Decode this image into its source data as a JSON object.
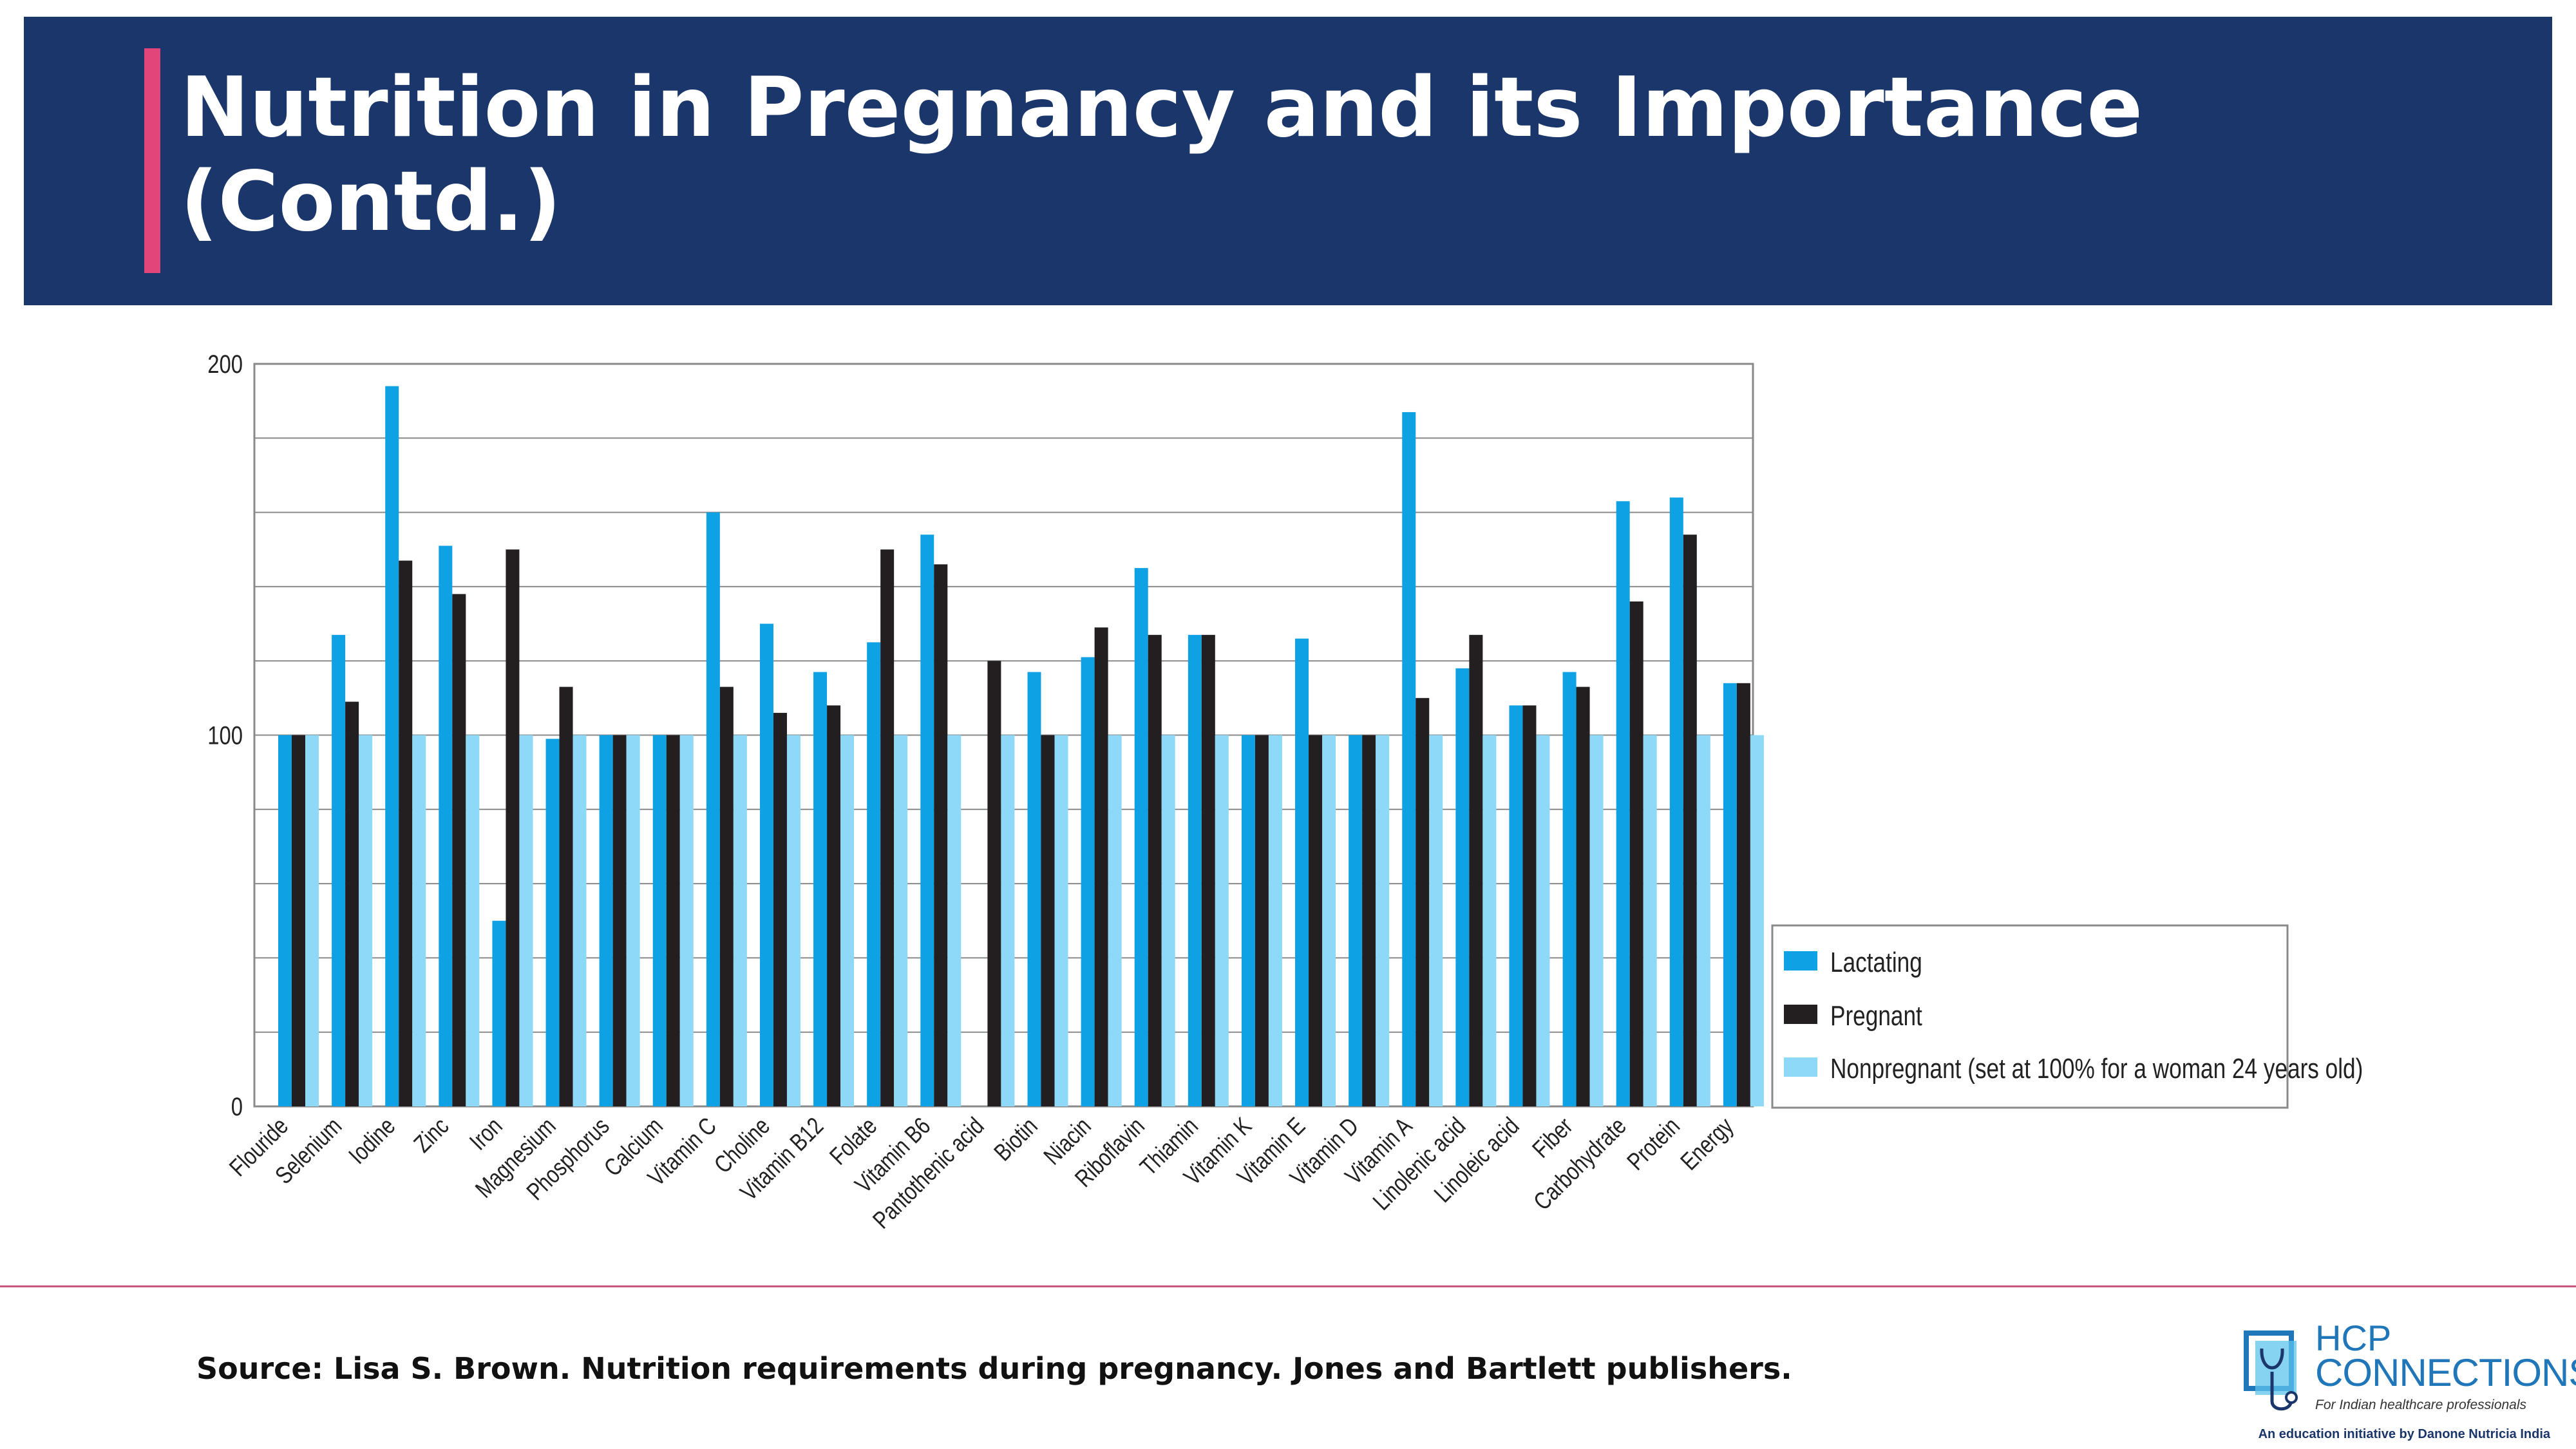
{
  "header": {
    "title": "Nutrition in Pregnancy and its Importance (Contd.)"
  },
  "footer": {
    "source": "Source: Lisa S. Brown. Nutrition requirements during pregnancy. Jones and Bartlett publishers.",
    "logo_line1": "HCP",
    "logo_line2": "CONNECTIONS",
    "logo_tagline": "For Indian healthcare professionals",
    "logo_initiative": "An education initiative by Danone Nutricia India"
  },
  "colors": {
    "banner": "#1b366b",
    "accent": "#e2457a",
    "lactating": "#0ea1e4",
    "pregnant": "#231f20",
    "nonpregnant": "#8ed8f8"
  },
  "chart_data": {
    "type": "bar",
    "title": "",
    "xlabel": "",
    "ylabel": "",
    "ylim": [
      0,
      200
    ],
    "yticks": [
      0,
      100,
      200
    ],
    "grid": true,
    "legend_position": "right",
    "categories": [
      "Flouride",
      "Selenium",
      "Iodine",
      "Zinc",
      "Iron",
      "Magnesium",
      "Phosphorus",
      "Calcium",
      "Vitamin C",
      "Choline",
      "Vitamin B12",
      "Folate",
      "Vitamin B6",
      "Pantothenic acid",
      "Biotin",
      "Niacin",
      "Riboflavin",
      "Thiamin",
      "Vitamin K",
      "Vitamin E",
      "Vitamin D",
      "Vitamin A",
      "Linolenic acid",
      "Linoleic acid",
      "Fiber",
      "Carbohydrate",
      "Protein",
      "Energy"
    ],
    "series": [
      {
        "name": "Lactating",
        "values": [
          100,
          127,
          194,
          151,
          50,
          99,
          100,
          100,
          160,
          130,
          117,
          125,
          154,
          0,
          117,
          121,
          145,
          127,
          100,
          126,
          100,
          187,
          118,
          108,
          117,
          163,
          164,
          114
        ]
      },
      {
        "name": "Pregnant",
        "values": [
          100,
          109,
          147,
          138,
          150,
          113,
          100,
          100,
          113,
          106,
          108,
          150,
          146,
          120,
          100,
          129,
          127,
          127,
          100,
          100,
          100,
          110,
          127,
          108,
          113,
          136,
          154,
          114
        ]
      },
      {
        "name": "Nonpregnant (set at 100% for a woman 24 years old)",
        "values": [
          100,
          100,
          100,
          100,
          100,
          100,
          100,
          100,
          100,
          100,
          100,
          100,
          100,
          100,
          100,
          100,
          100,
          100,
          100,
          100,
          100,
          100,
          100,
          100,
          100,
          100,
          100,
          100
        ]
      }
    ]
  }
}
